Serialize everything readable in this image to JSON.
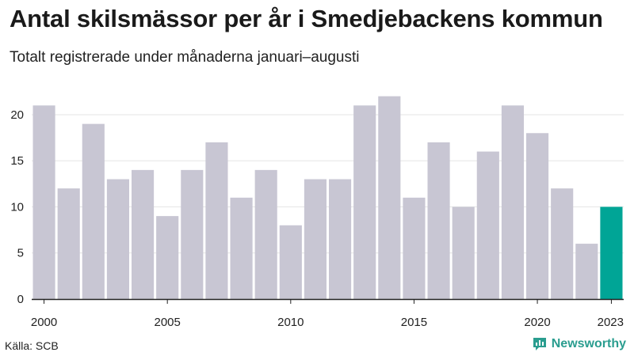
{
  "header": {
    "title": "Antal skilsmässor per år i Smedjebackens kommun",
    "subtitle": "Totalt registrerade under månaderna januari–augusti"
  },
  "footer": {
    "source": "Källa: SCB",
    "brand": "Newsworthy"
  },
  "colors": {
    "bar": "#c8c6d3",
    "highlight": "#00a596",
    "grid": "#e6e6e6",
    "axis": "#222222",
    "brand": "#2a9d8f"
  },
  "chart_data": {
    "type": "bar",
    "title": "Antal skilsmässor per år i Smedjebackens kommun",
    "subtitle": "Totalt registrerade under månaderna januari–augusti",
    "xlabel": "",
    "ylabel": "",
    "categories": [
      "2000",
      "2001",
      "2002",
      "2003",
      "2004",
      "2005",
      "2006",
      "2007",
      "2008",
      "2009",
      "2010",
      "2011",
      "2012",
      "2013",
      "2014",
      "2015",
      "2016",
      "2017",
      "2018",
      "2019",
      "2020",
      "2021",
      "2022",
      "2023"
    ],
    "values": [
      21,
      12,
      19,
      13,
      14,
      9,
      14,
      17,
      11,
      14,
      8,
      13,
      13,
      21,
      22,
      11,
      17,
      10,
      16,
      21,
      18,
      12,
      6,
      10
    ],
    "highlight_category": "2023",
    "x_tick_labels": [
      "2000",
      "2005",
      "2010",
      "2015",
      "2020",
      "2023"
    ],
    "y_ticks": [
      0,
      5,
      10,
      15,
      20
    ],
    "ylim": [
      0,
      23
    ],
    "grid": true
  }
}
